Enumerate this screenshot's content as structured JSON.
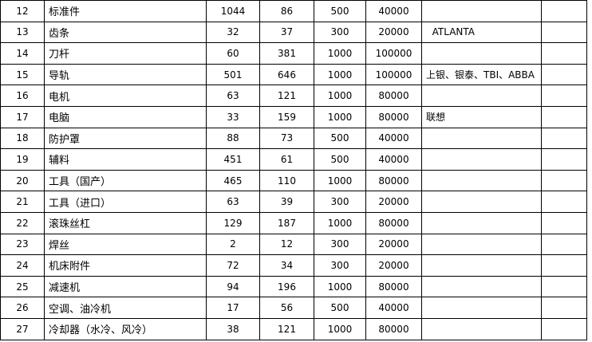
{
  "rows": [
    {
      "no": "12",
      "name": "标准件",
      "a": "1044",
      "b": "86",
      "c": "500",
      "d": "40000",
      "note": "",
      "extra": ""
    },
    {
      "no": "13",
      "name": "齿条",
      "a": "32",
      "b": "37",
      "c": "300",
      "d": "20000",
      "note": "  ATLANTA",
      "extra": ""
    },
    {
      "no": "14",
      "name": "刀杆",
      "a": "60",
      "b": "381",
      "c": "1000",
      "d": "100000",
      "note": "",
      "extra": ""
    },
    {
      "no": "15",
      "name": "导轨",
      "a": "501",
      "b": "646",
      "c": "1000",
      "d": "100000",
      "note": "上银、银泰、TBI、ABBA",
      "extra": ""
    },
    {
      "no": "16",
      "name": "电机",
      "a": "63",
      "b": "121",
      "c": "1000",
      "d": "80000",
      "note": "",
      "extra": ""
    },
    {
      "no": "17",
      "name": "电脑",
      "a": "33",
      "b": "159",
      "c": "1000",
      "d": "80000",
      "note": "联想",
      "extra": ""
    },
    {
      "no": "18",
      "name": "防护罩",
      "a": "88",
      "b": "73",
      "c": "500",
      "d": "40000",
      "note": "",
      "extra": ""
    },
    {
      "no": "19",
      "name": "辅料",
      "a": "451",
      "b": "61",
      "c": "500",
      "d": "40000",
      "note": "",
      "extra": ""
    },
    {
      "no": "20",
      "name": "工具（国产）",
      "a": "465",
      "b": "110",
      "c": "1000",
      "d": "80000",
      "note": "",
      "extra": ""
    },
    {
      "no": "21",
      "name": "工具（进口）",
      "a": "63",
      "b": "39",
      "c": "300",
      "d": "20000",
      "note": "",
      "extra": ""
    },
    {
      "no": "22",
      "name": "滚珠丝杠",
      "a": "129",
      "b": "187",
      "c": "1000",
      "d": "80000",
      "note": "",
      "extra": ""
    },
    {
      "no": "23",
      "name": "焊丝",
      "a": "2",
      "b": "12",
      "c": "300",
      "d": "20000",
      "note": "",
      "extra": ""
    },
    {
      "no": "24",
      "name": "机床附件",
      "a": "72",
      "b": "34",
      "c": "300",
      "d": "20000",
      "note": "",
      "extra": ""
    },
    {
      "no": "25",
      "name": "减速机",
      "a": "94",
      "b": "196",
      "c": "1000",
      "d": "80000",
      "note": "",
      "extra": ""
    },
    {
      "no": "26",
      "name": "空调、油冷机",
      "a": "17",
      "b": "56",
      "c": "500",
      "d": "40000",
      "note": "",
      "extra": ""
    },
    {
      "no": "27",
      "name": "冷却器（水冷、风冷）",
      "a": "38",
      "b": "121",
      "c": "1000",
      "d": "80000",
      "note": "",
      "extra": ""
    }
  ]
}
